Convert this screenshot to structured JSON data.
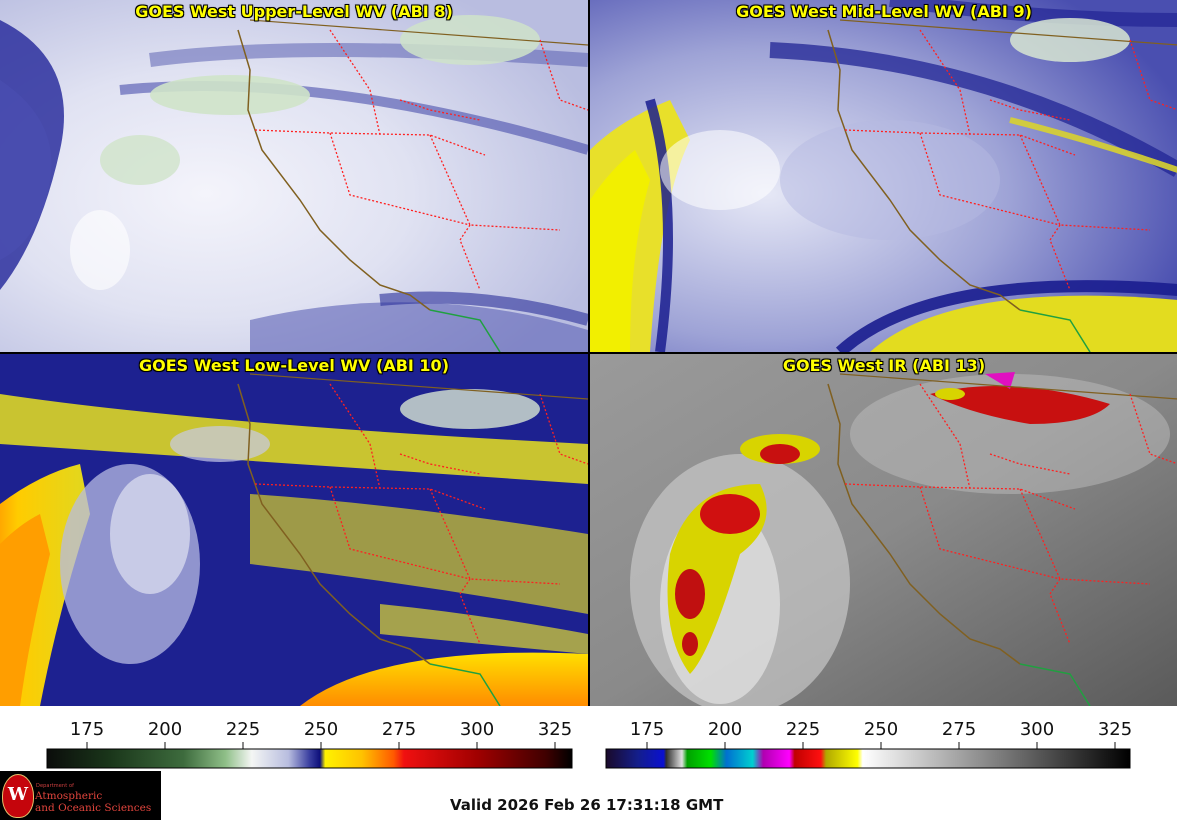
{
  "panels": [
    {
      "id": "upper",
      "title": "GOES West Upper-Level WV (ABI 8)"
    },
    {
      "id": "mid",
      "title": "GOES West Mid-Level WV (ABI 9)"
    },
    {
      "id": "low",
      "title": "GOES West Low-Level WV (ABI 10)"
    },
    {
      "id": "ir",
      "title": "GOES West IR (ABI 13)"
    }
  ],
  "colorbars": {
    "wv": {
      "ticks": [
        "175",
        "200",
        "225",
        "250",
        "275",
        "300",
        "325"
      ],
      "stops": [
        "#0b0d0b",
        "#1a361a",
        "#3d6b3d",
        "#8fbf88",
        "#f4f6f4",
        "#b8bddf",
        "#3a3fa0",
        "#0d0f7a",
        "#fff200",
        "#ffc200",
        "#ff5a00",
        "#f01010",
        "#a00000",
        "#400000",
        "#000000"
      ]
    },
    "ir": {
      "ticks": [
        "175",
        "200",
        "225",
        "250",
        "275",
        "300",
        "325"
      ]
    }
  },
  "footer": {
    "valid_text": "Valid 2026 Feb 26 17:31:18 GMT"
  },
  "logo": {
    "dept": "Department of",
    "line1": "Atmospheric",
    "line2": "and Oceanic Sciences",
    "seal": "W"
  },
  "colors": {
    "state_border": "#ff2020",
    "coast": "#806020",
    "mexico_border": "#20a040",
    "title": "#ffff00"
  }
}
